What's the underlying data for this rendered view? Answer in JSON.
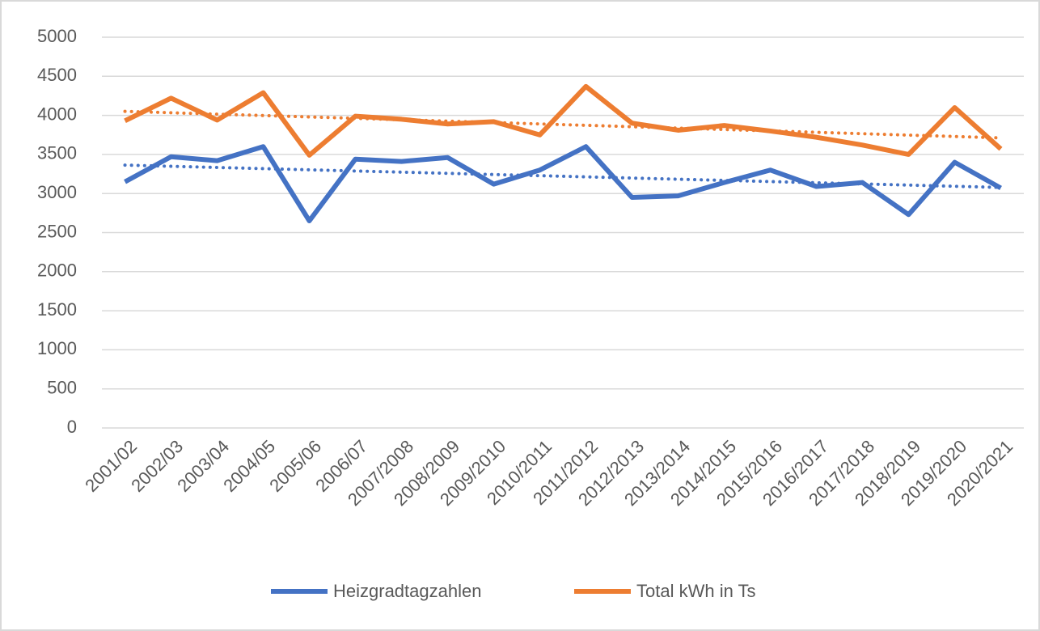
{
  "chart_data": {
    "type": "line",
    "categories": [
      "2001/02",
      "2002/03",
      "2003/04",
      "2004/05",
      "2005/06",
      "2006/07",
      "2007/2008",
      "2008/2009",
      "2009/2010",
      "2010/2011",
      "2011/2012",
      "2012/2013",
      "2013/2014",
      "2014/2015",
      "2015/2016",
      "2016/2017",
      "2017/2018",
      "2018/2019",
      "2019/2020",
      "2020/2021"
    ],
    "series": [
      {
        "name": "Heizgradtagzahlen",
        "color": "#4472c4",
        "values": [
          3150,
          3470,
          3420,
          3600,
          2650,
          3440,
          3410,
          3460,
          3120,
          3300,
          3600,
          2950,
          2970,
          3140,
          3300,
          3090,
          3140,
          2730,
          3400,
          3070
        ]
      },
      {
        "name": "Total kWh in Ts",
        "color": "#ed7d31",
        "values": [
          3930,
          4220,
          3940,
          4290,
          3490,
          3990,
          3950,
          3890,
          3920,
          3750,
          4370,
          3900,
          3810,
          3870,
          3800,
          3720,
          3620,
          3500,
          4100,
          3570
        ]
      }
    ],
    "ylim": [
      0,
      5000
    ],
    "yticks": [
      0,
      500,
      1000,
      1500,
      2000,
      2500,
      3000,
      3500,
      4000,
      4500,
      5000
    ],
    "grid": true,
    "trendline": "linear",
    "legend": "bottom"
  }
}
